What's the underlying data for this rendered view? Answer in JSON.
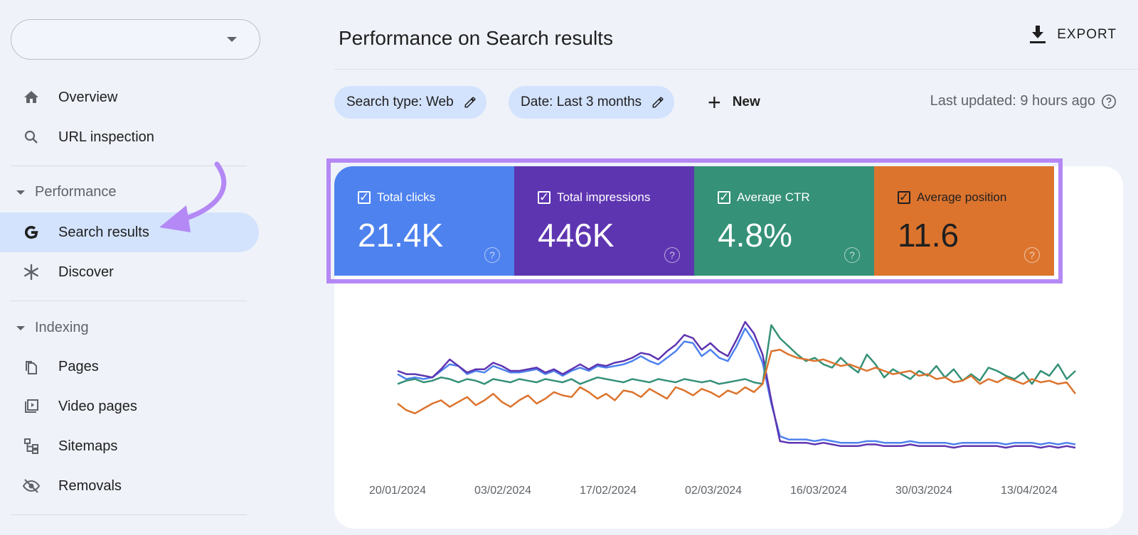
{
  "sidebar": {
    "property_value": "",
    "items": [
      {
        "label": "Overview",
        "icon": "home-icon"
      },
      {
        "label": "URL inspection",
        "icon": "search-icon"
      },
      {
        "label": "Search results",
        "icon": "google-g-icon"
      },
      {
        "label": "Discover",
        "icon": "asterisk-icon"
      },
      {
        "label": "Pages",
        "icon": "pages-icon"
      },
      {
        "label": "Video pages",
        "icon": "video-pages-icon"
      },
      {
        "label": "Sitemaps",
        "icon": "sitemaps-icon"
      },
      {
        "label": "Removals",
        "icon": "removals-icon"
      }
    ],
    "sections": {
      "performance": "Performance",
      "indexing": "Indexing"
    }
  },
  "header": {
    "title": "Performance on Search results",
    "export_label": "EXPORT"
  },
  "filters": {
    "search_type": "Search type: Web",
    "date": "Date: Last 3 months",
    "new_label": "New",
    "last_updated": "Last updated: 9 hours ago"
  },
  "metrics": [
    {
      "label": "Total clicks",
      "value": "21.4K",
      "color": "#4e82ee"
    },
    {
      "label": "Total impressions",
      "value": "446K",
      "color": "#5e35b1"
    },
    {
      "label": "Average CTR",
      "value": "4.8%",
      "color": "#359178"
    },
    {
      "label": "Average position",
      "value": "11.6",
      "color": "#dc742e"
    }
  ],
  "chart_data": {
    "type": "line",
    "x_tick_labels": [
      "20/01/2024",
      "03/02/2024",
      "17/02/2024",
      "02/03/2024",
      "16/03/2024",
      "30/03/2024",
      "13/04/2024"
    ],
    "grid": false,
    "series": [
      {
        "name": "Total clicks",
        "color": "#4e82ee",
        "values": [
          0.58,
          0.55,
          0.56,
          0.55,
          0.56,
          0.6,
          0.64,
          0.63,
          0.58,
          0.6,
          0.59,
          0.63,
          0.61,
          0.59,
          0.59,
          0.6,
          0.61,
          0.58,
          0.6,
          0.57,
          0.6,
          0.62,
          0.6,
          0.63,
          0.62,
          0.63,
          0.64,
          0.66,
          0.69,
          0.66,
          0.64,
          0.68,
          0.72,
          0.78,
          0.77,
          0.69,
          0.73,
          0.68,
          0.66,
          0.75,
          0.86,
          0.78,
          0.65,
          0.4,
          0.2,
          0.18,
          0.18,
          0.18,
          0.17,
          0.18,
          0.17,
          0.16,
          0.16,
          0.16,
          0.17,
          0.17,
          0.16,
          0.16,
          0.16,
          0.17,
          0.16,
          0.16,
          0.16,
          0.16,
          0.15,
          0.16,
          0.16,
          0.16,
          0.16,
          0.16,
          0.15,
          0.16,
          0.16,
          0.16,
          0.15,
          0.16,
          0.15,
          0.16,
          0.15
        ]
      },
      {
        "name": "Total impressions",
        "color": "#5e35b1",
        "values": [
          0.6,
          0.58,
          0.58,
          0.57,
          0.56,
          0.61,
          0.67,
          0.63,
          0.59,
          0.61,
          0.61,
          0.65,
          0.63,
          0.6,
          0.6,
          0.61,
          0.62,
          0.59,
          0.61,
          0.58,
          0.61,
          0.64,
          0.61,
          0.64,
          0.63,
          0.65,
          0.66,
          0.68,
          0.71,
          0.7,
          0.67,
          0.72,
          0.76,
          0.82,
          0.8,
          0.73,
          0.77,
          0.72,
          0.69,
          0.79,
          0.9,
          0.83,
          0.7,
          0.42,
          0.17,
          0.16,
          0.16,
          0.16,
          0.15,
          0.16,
          0.15,
          0.14,
          0.14,
          0.14,
          0.15,
          0.15,
          0.14,
          0.14,
          0.14,
          0.15,
          0.14,
          0.14,
          0.14,
          0.14,
          0.13,
          0.14,
          0.14,
          0.14,
          0.14,
          0.14,
          0.13,
          0.14,
          0.14,
          0.14,
          0.13,
          0.14,
          0.13,
          0.14,
          0.13
        ]
      },
      {
        "name": "Average CTR",
        "color": "#359178",
        "values": [
          0.52,
          0.54,
          0.55,
          0.53,
          0.54,
          0.56,
          0.55,
          0.53,
          0.55,
          0.54,
          0.52,
          0.55,
          0.54,
          0.53,
          0.55,
          0.54,
          0.53,
          0.55,
          0.54,
          0.53,
          0.55,
          0.52,
          0.54,
          0.56,
          0.55,
          0.54,
          0.53,
          0.55,
          0.54,
          0.53,
          0.55,
          0.54,
          0.53,
          0.55,
          0.54,
          0.53,
          0.54,
          0.52,
          0.53,
          0.54,
          0.55,
          0.53,
          0.52,
          0.88,
          0.8,
          0.75,
          0.7,
          0.66,
          0.68,
          0.64,
          0.62,
          0.68,
          0.63,
          0.59,
          0.7,
          0.64,
          0.56,
          0.61,
          0.58,
          0.55,
          0.6,
          0.57,
          0.63,
          0.56,
          0.61,
          0.54,
          0.58,
          0.54,
          0.62,
          0.6,
          0.57,
          0.55,
          0.59,
          0.52,
          0.6,
          0.57,
          0.64,
          0.55,
          0.6
        ]
      },
      {
        "name": "Average position",
        "color": "#dc742e",
        "values": [
          0.4,
          0.36,
          0.34,
          0.37,
          0.4,
          0.42,
          0.38,
          0.41,
          0.44,
          0.39,
          0.42,
          0.46,
          0.41,
          0.38,
          0.42,
          0.45,
          0.4,
          0.43,
          0.47,
          0.45,
          0.44,
          0.5,
          0.47,
          0.43,
          0.46,
          0.42,
          0.48,
          0.47,
          0.44,
          0.49,
          0.46,
          0.43,
          0.5,
          0.48,
          0.45,
          0.49,
          0.47,
          0.44,
          0.48,
          0.46,
          0.5,
          0.47,
          0.52,
          0.72,
          0.73,
          0.7,
          0.68,
          0.67,
          0.66,
          0.67,
          0.65,
          0.63,
          0.64,
          0.62,
          0.6,
          0.62,
          0.6,
          0.58,
          0.59,
          0.6,
          0.57,
          0.58,
          0.55,
          0.56,
          0.53,
          0.54,
          0.57,
          0.52,
          0.55,
          0.53,
          0.56,
          0.54,
          0.52,
          0.55,
          0.53,
          0.54,
          0.52,
          0.53,
          0.46
        ]
      }
    ]
  }
}
